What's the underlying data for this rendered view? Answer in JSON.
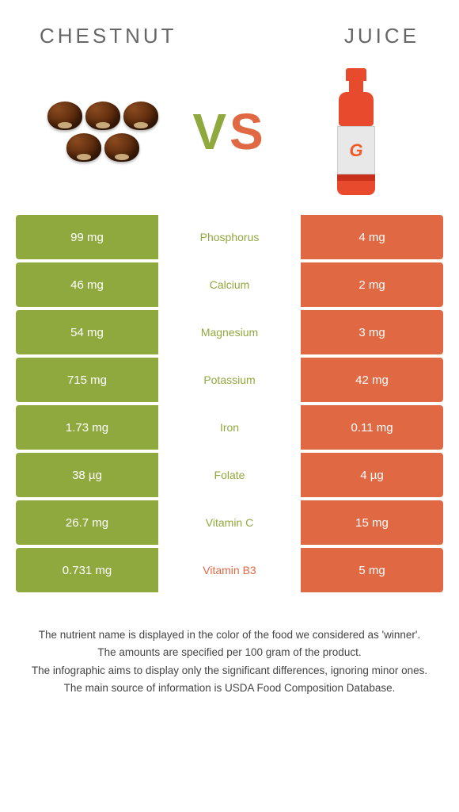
{
  "titles": {
    "left": "CHESTNUT",
    "right": "JUICE"
  },
  "vs": {
    "v": "V",
    "s": "S"
  },
  "colors": {
    "chestnut": "#8fa93e",
    "juice": "#e06943",
    "neutral_text": "#666666"
  },
  "images": {
    "left": "chestnuts",
    "right": "red-sports-drink-bottle",
    "bottle_logo": "G"
  },
  "table": {
    "left_bg": "#8fa93e",
    "right_bg": "#e06943",
    "rows": [
      {
        "left": "99 mg",
        "name": "Phosphorus",
        "right": "4 mg",
        "winner": "left"
      },
      {
        "left": "46 mg",
        "name": "Calcium",
        "right": "2 mg",
        "winner": "left"
      },
      {
        "left": "54 mg",
        "name": "Magnesium",
        "right": "3 mg",
        "winner": "left"
      },
      {
        "left": "715 mg",
        "name": "Potassium",
        "right": "42 mg",
        "winner": "left"
      },
      {
        "left": "1.73 mg",
        "name": "Iron",
        "right": "0.11 mg",
        "winner": "left"
      },
      {
        "left": "38 µg",
        "name": "Folate",
        "right": "4 µg",
        "winner": "left"
      },
      {
        "left": "26.7 mg",
        "name": "Vitamin C",
        "right": "15 mg",
        "winner": "left"
      },
      {
        "left": "0.731 mg",
        "name": "Vitamin B3",
        "right": "5 mg",
        "winner": "right"
      }
    ]
  },
  "footnotes": [
    "The nutrient name is displayed in the color of the food we considered as 'winner'.",
    "The amounts are specified per 100 gram of the product.",
    "The infographic aims to display only the significant differences, ignoring minor ones.",
    "The main source of information is USDA Food Composition Database."
  ]
}
